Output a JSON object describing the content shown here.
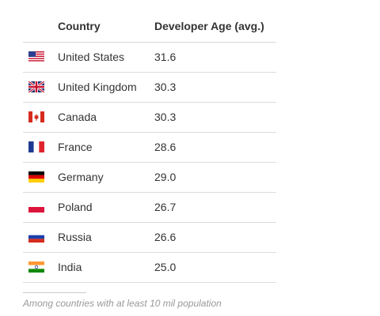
{
  "table": {
    "headers": {
      "country": "Country",
      "age": "Developer Age (avg.)"
    },
    "rows": [
      {
        "flag": "us-flag-icon",
        "country": "United States",
        "age": "31.6"
      },
      {
        "flag": "uk-flag-icon",
        "country": "United Kingdom",
        "age": "30.3"
      },
      {
        "flag": "canada-flag-icon",
        "country": "Canada",
        "age": "30.3"
      },
      {
        "flag": "france-flag-icon",
        "country": "France",
        "age": "28.6"
      },
      {
        "flag": "germany-flag-icon",
        "country": "Germany",
        "age": "29.0"
      },
      {
        "flag": "poland-flag-icon",
        "country": "Poland",
        "age": "26.7"
      },
      {
        "flag": "russia-flag-icon",
        "country": "Russia",
        "age": "26.6"
      },
      {
        "flag": "india-flag-icon",
        "country": "India",
        "age": "25.0"
      }
    ]
  },
  "footnote": "Among countries with at least 10 mil population"
}
